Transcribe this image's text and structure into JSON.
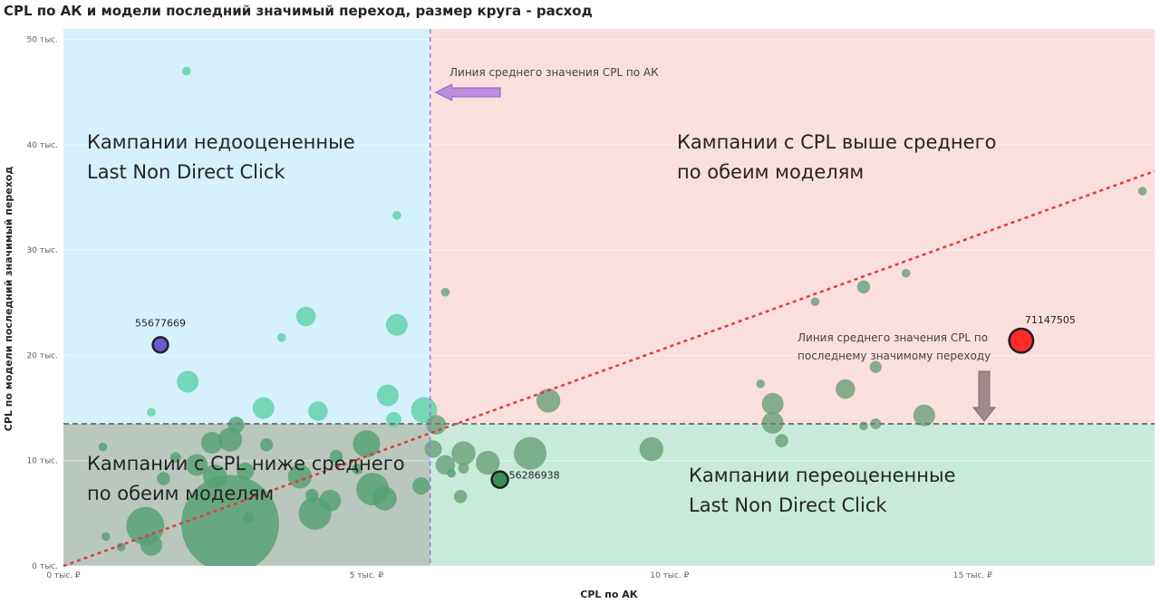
{
  "chart_data": {
    "type": "scatter",
    "title": "CPL по АК и модели последний значимый переход, размер круга - расход",
    "xlabel": "CPL по АК",
    "ylabel": "CPL по модели последний значимый переход",
    "xlim": [
      0,
      18000
    ],
    "ylim": [
      0,
      51000
    ],
    "x_ticks": [
      {
        "value": 0,
        "label": "0 тыс. ₽"
      },
      {
        "value": 5000,
        "label": "5 тыс. ₽"
      },
      {
        "value": 10000,
        "label": "10 тыс. ₽"
      },
      {
        "value": 15000,
        "label": "15 тыс. ₽"
      }
    ],
    "y_ticks": [
      {
        "value": 0,
        "label": "0 тыс."
      },
      {
        "value": 10000,
        "label": "10 тыс."
      },
      {
        "value": 20000,
        "label": "20 тыс."
      },
      {
        "value": 30000,
        "label": "30 тыс."
      },
      {
        "value": 40000,
        "label": "40 тыс."
      },
      {
        "value": 50000,
        "label": "50 тыс."
      }
    ],
    "avg_x": 6050,
    "avg_y": 13500,
    "trend_line": [
      [
        0,
        0
      ],
      [
        18000,
        37500
      ]
    ],
    "quadrants": {
      "top_left": {
        "lines": [
          "Кампании недооцененные",
          "Last Non Direct Click"
        ],
        "color": "#d5f1fb"
      },
      "top_right": {
        "lines": [
          "Кампании с CPL выше среднего",
          "по обеим моделям"
        ],
        "color": "#fbdfdf"
      },
      "bottom_left": {
        "lines": [
          "Кампании с CPL ниже среднего",
          "по обеим моделям"
        ],
        "color": "#bac7be"
      },
      "bottom_right": {
        "lines": [
          "Кампании переоцененные",
          "Last Non Direct Click"
        ],
        "color": "#c8eadb"
      }
    },
    "annotations": {
      "avg_x_line": "Линия среднего значения CPL по АК",
      "avg_y_line": [
        "Линия среднего значения CPL по",
        "последнему значимому переходу"
      ]
    },
    "colors": {
      "avg_x_line": "#9b7be0",
      "avg_y_line": "#7a7a7a",
      "trend": "#e53935",
      "arrow_x": "#c08ee0",
      "arrow_y": "#9e8a8a",
      "point_left": "#5fcfa8",
      "point_right": "#6aa27a",
      "point_low": "#54a074"
    },
    "points": [
      {
        "x": 2030,
        "y": 47000,
        "size": 0.8,
        "group": "left"
      },
      {
        "x": 5500,
        "y": 33300,
        "size": 0.8,
        "group": "left"
      },
      {
        "x": 4000,
        "y": 23700,
        "size": 1.8,
        "group": "left"
      },
      {
        "x": 5500,
        "y": 22900,
        "size": 2,
        "group": "left"
      },
      {
        "x": 3600,
        "y": 21700,
        "size": 0.8,
        "group": "left"
      },
      {
        "x": 2050,
        "y": 17500,
        "size": 2,
        "group": "left"
      },
      {
        "x": 1450,
        "y": 14600,
        "size": 0.8,
        "group": "left"
      },
      {
        "x": 3300,
        "y": 15000,
        "size": 2,
        "group": "left"
      },
      {
        "x": 4200,
        "y": 14700,
        "size": 1.8,
        "group": "left"
      },
      {
        "x": 5350,
        "y": 16200,
        "size": 2,
        "group": "left"
      },
      {
        "x": 5450,
        "y": 13900,
        "size": 1.4,
        "group": "left"
      },
      {
        "x": 5950,
        "y": 14800,
        "size": 2.4,
        "group": "left"
      },
      {
        "x": 6300,
        "y": 26000,
        "size": 0.8,
        "group": "right"
      },
      {
        "x": 8000,
        "y": 15700,
        "size": 2.2,
        "group": "right"
      },
      {
        "x": 11500,
        "y": 17300,
        "size": 0.8,
        "group": "right"
      },
      {
        "x": 11700,
        "y": 15400,
        "size": 2,
        "group": "right"
      },
      {
        "x": 12400,
        "y": 25100,
        "size": 0.8,
        "group": "right"
      },
      {
        "x": 12900,
        "y": 16800,
        "size": 1.8,
        "group": "right"
      },
      {
        "x": 13200,
        "y": 26500,
        "size": 1.2,
        "group": "right"
      },
      {
        "x": 13900,
        "y": 27800,
        "size": 0.8,
        "group": "right"
      },
      {
        "x": 13400,
        "y": 18900,
        "size": 1.1,
        "group": "right"
      },
      {
        "x": 13400,
        "y": 13500,
        "size": 1,
        "group": "right"
      },
      {
        "x": 13200,
        "y": 13300,
        "size": 0.8,
        "group": "right"
      },
      {
        "x": 14200,
        "y": 14300,
        "size": 2,
        "group": "right"
      },
      {
        "x": 11700,
        "y": 13600,
        "size": 2,
        "group": "right"
      },
      {
        "x": 11850,
        "y": 11900,
        "size": 1.2,
        "group": "right"
      },
      {
        "x": 17800,
        "y": 35600,
        "size": 0.8,
        "group": "right"
      },
      {
        "x": 6150,
        "y": 13400,
        "size": 1.8,
        "group": "right"
      },
      {
        "x": 6100,
        "y": 11100,
        "size": 1.6,
        "group": "right"
      },
      {
        "x": 6300,
        "y": 9600,
        "size": 1.8,
        "group": "right"
      },
      {
        "x": 6600,
        "y": 10700,
        "size": 2.2,
        "group": "right"
      },
      {
        "x": 6600,
        "y": 9300,
        "size": 1,
        "group": "right"
      },
      {
        "x": 7000,
        "y": 9800,
        "size": 2.2,
        "group": "right"
      },
      {
        "x": 7700,
        "y": 10700,
        "size": 3,
        "group": "right"
      },
      {
        "x": 9700,
        "y": 11100,
        "size": 2.2,
        "group": "right"
      },
      {
        "x": 6550,
        "y": 6600,
        "size": 1.2,
        "group": "right"
      },
      {
        "x": 1350,
        "y": 3800,
        "size": 3.5,
        "group": "low"
      },
      {
        "x": 2750,
        "y": 4000,
        "size": 9,
        "group": "low"
      },
      {
        "x": 1450,
        "y": 2000,
        "size": 2,
        "group": "low"
      },
      {
        "x": 1850,
        "y": 10300,
        "size": 1,
        "group": "low"
      },
      {
        "x": 2450,
        "y": 11700,
        "size": 2,
        "group": "low"
      },
      {
        "x": 2200,
        "y": 9600,
        "size": 2,
        "group": "low"
      },
      {
        "x": 2750,
        "y": 12000,
        "size": 2.2,
        "group": "low"
      },
      {
        "x": 2850,
        "y": 13400,
        "size": 1.5,
        "group": "low"
      },
      {
        "x": 3350,
        "y": 11500,
        "size": 1.2,
        "group": "low"
      },
      {
        "x": 2500,
        "y": 8500,
        "size": 2.2,
        "group": "low"
      },
      {
        "x": 3000,
        "y": 9000,
        "size": 1.6,
        "group": "low"
      },
      {
        "x": 3900,
        "y": 8500,
        "size": 2.2,
        "group": "low"
      },
      {
        "x": 4100,
        "y": 6700,
        "size": 1.2,
        "group": "low"
      },
      {
        "x": 4150,
        "y": 5000,
        "size": 3,
        "group": "low"
      },
      {
        "x": 4400,
        "y": 6200,
        "size": 2,
        "group": "low"
      },
      {
        "x": 5000,
        "y": 11600,
        "size": 2.5,
        "group": "low"
      },
      {
        "x": 5100,
        "y": 7300,
        "size": 3,
        "group": "low"
      },
      {
        "x": 5300,
        "y": 6400,
        "size": 2.2,
        "group": "low"
      },
      {
        "x": 5900,
        "y": 7600,
        "size": 1.6,
        "group": "low"
      },
      {
        "x": 4850,
        "y": 9200,
        "size": 1,
        "group": "low"
      },
      {
        "x": 4500,
        "y": 10400,
        "size": 1.2,
        "group": "low"
      },
      {
        "x": 3050,
        "y": 4600,
        "size": 1,
        "group": "low"
      },
      {
        "x": 650,
        "y": 11300,
        "size": 0.8,
        "group": "low"
      },
      {
        "x": 700,
        "y": 2800,
        "size": 0.8,
        "group": "low"
      },
      {
        "x": 950,
        "y": 1800,
        "size": 0.8,
        "group": "low"
      },
      {
        "x": 1650,
        "y": 8300,
        "size": 1.2,
        "group": "low"
      },
      {
        "x": 6400,
        "y": 8800,
        "size": 0.8,
        "group": "low"
      }
    ],
    "highlighted": [
      {
        "label": "55677669",
        "x": 1600,
        "y": 21000,
        "size": 1.4,
        "color": "#6a5acd",
        "label_pos": "above"
      },
      {
        "label": "71147505",
        "x": 15800,
        "y": 21400,
        "size": 2.2,
        "color": "#ff2b2b",
        "label_pos": "above-right"
      },
      {
        "label": "56286938",
        "x": 7200,
        "y": 8200,
        "size": 1.5,
        "color": "#3c8c5c",
        "label_pos": "right"
      }
    ]
  }
}
